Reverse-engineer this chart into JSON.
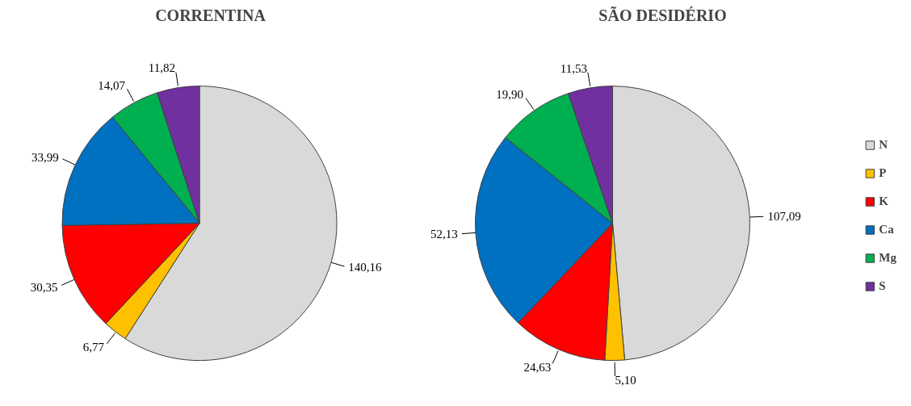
{
  "chart_data": [
    {
      "type": "pie",
      "title": "CORRENTINA",
      "categories": [
        "N",
        "P",
        "K",
        "Ca",
        "Mg",
        "S"
      ],
      "values": [
        140.16,
        6.77,
        30.35,
        33.99,
        14.07,
        11.82
      ],
      "value_labels": [
        "140,16",
        "6,77",
        "30,35",
        "33,99",
        "14,07",
        "11,82"
      ],
      "colors": [
        "#d9d9d9",
        "#ffc000",
        "#ff0000",
        "#0070c0",
        "#00b050",
        "#7030a0"
      ],
      "legend": "right"
    },
    {
      "type": "pie",
      "title": "SÃO DESIDÉRIO",
      "categories": [
        null,
        null,
        null,
        null,
        null,
        null
      ],
      "values": [
        107.09,
        5.1,
        24.63,
        52.13,
        19.9,
        11.53
      ],
      "value_labels": [
        "107,09",
        "5,10",
        "24,63",
        "52,13",
        "19,90",
        "11,53"
      ],
      "colors": [
        "#d9d9d9",
        "#ffc000",
        "#ff0000",
        "#0070c0",
        "#00b050",
        "#7030a0"
      ]
    }
  ]
}
